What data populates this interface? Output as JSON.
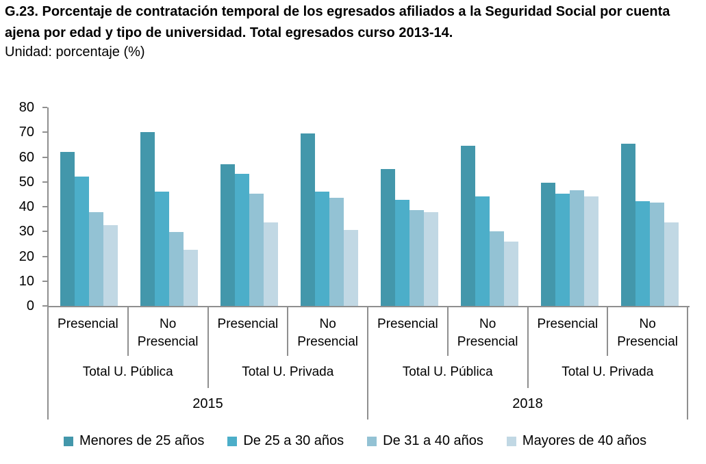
{
  "chart_data": {
    "type": "bar",
    "title": "G.23. Porcentaje de contratación temporal de los egresados afiliados a la Seguridad Social por cuenta ajena por edad y tipo de universidad. Total egresados curso 2013-14.",
    "unit_label": "Unidad: porcentaje (%)",
    "ylim": [
      0,
      80
    ],
    "yticks": [
      0,
      10,
      20,
      30,
      40,
      50,
      60,
      70,
      80
    ],
    "grid": false,
    "legend_position": "bottom",
    "axis_colors": {
      "line": "#8f8f8f",
      "text": "#000000"
    },
    "groups": [
      {
        "year": "2015",
        "university": "Total U. Pública",
        "mode": "Presencial"
      },
      {
        "year": "2015",
        "university": "Total U. Pública",
        "mode": "No Presencial"
      },
      {
        "year": "2015",
        "university": "Total U. Privada",
        "mode": "Presencial"
      },
      {
        "year": "2015",
        "university": "Total U. Privada",
        "mode": "No Presencial"
      },
      {
        "year": "2018",
        "university": "Total U. Pública",
        "mode": "Presencial"
      },
      {
        "year": "2018",
        "university": "Total U. Pública",
        "mode": "No Presencial"
      },
      {
        "year": "2018",
        "university": "Total U. Privada",
        "mode": "Presencial"
      },
      {
        "year": "2018",
        "university": "Total U. Privada",
        "mode": "No Presencial"
      }
    ],
    "axis_rows": {
      "mode_labels": [
        "Presencial",
        "No Presencial",
        "Presencial",
        "No Presencial",
        "Presencial",
        "No Presencial",
        "Presencial",
        "No Presencial"
      ],
      "university_labels": [
        "Total U. Pública",
        "Total U. Privada",
        "Total U. Pública",
        "Total U. Privada"
      ],
      "year_labels": [
        "2015",
        "2018"
      ]
    },
    "series": [
      {
        "name": "Menores de 25 años",
        "color": "#4397AB",
        "values": [
          62.0,
          70.1,
          57.1,
          69.6,
          55.2,
          64.6,
          49.6,
          65.3
        ]
      },
      {
        "name": "De 25 a 30 años",
        "color": "#4CAEC9",
        "values": [
          52.1,
          46.1,
          53.3,
          46.0,
          42.8,
          44.1,
          45.2,
          42.1
        ]
      },
      {
        "name": "De 31 a 40 años",
        "color": "#93C2D4",
        "values": [
          37.7,
          29.9,
          45.3,
          43.6,
          38.6,
          30.1,
          46.7,
          41.7
        ]
      },
      {
        "name": "Mayores de 40 años",
        "color": "#C1D8E4",
        "values": [
          32.5,
          22.5,
          33.7,
          30.6,
          37.7,
          26.0,
          44.2,
          33.7
        ]
      }
    ]
  }
}
